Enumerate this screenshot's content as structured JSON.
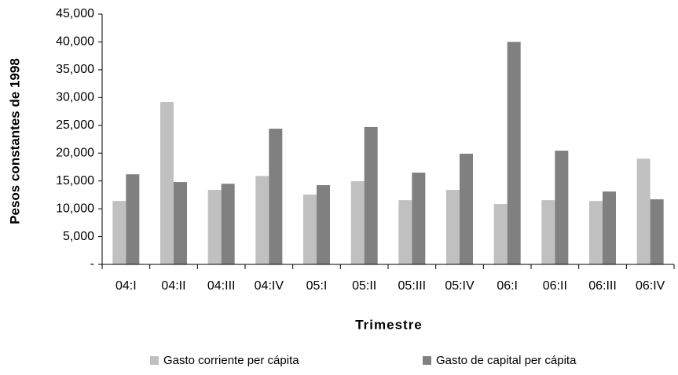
{
  "chart_data": {
    "type": "bar",
    "x_label": "Trimestre",
    "y_label": "Pesos constantes de 1998",
    "categories": [
      "04:I",
      "04:II",
      "04:III",
      "04:IV",
      "05:I",
      "05:II",
      "05:III",
      "05:IV",
      "06:I",
      "06:II",
      "06:III",
      "06:IV"
    ],
    "series": [
      {
        "name": "Gasto corriente per cápita",
        "color": "#c0c0c0",
        "values": [
          11400,
          29200,
          13400,
          15900,
          12550,
          14950,
          11550,
          13400,
          10850,
          11550,
          11400,
          19000
        ]
      },
      {
        "name": "Gasto de capital per cápita",
        "color": "#808080",
        "values": [
          16200,
          14800,
          14500,
          24400,
          14250,
          24700,
          16500,
          19900,
          40000,
          20450,
          13100,
          11700
        ]
      }
    ],
    "ylim": [
      0,
      45000
    ],
    "yticks": [
      {
        "value": 0,
        "label": "-"
      },
      {
        "value": 5000,
        "label": "5,000"
      },
      {
        "value": 10000,
        "label": "10,000"
      },
      {
        "value": 15000,
        "label": "15,000"
      },
      {
        "value": 20000,
        "label": "20,000"
      },
      {
        "value": 25000,
        "label": "25,000"
      },
      {
        "value": 30000,
        "label": "30,000"
      },
      {
        "value": 35000,
        "label": "35,000"
      },
      {
        "value": 40000,
        "label": "40,000"
      },
      {
        "value": 45000,
        "label": "45,000"
      }
    ],
    "legend": "bottom"
  }
}
